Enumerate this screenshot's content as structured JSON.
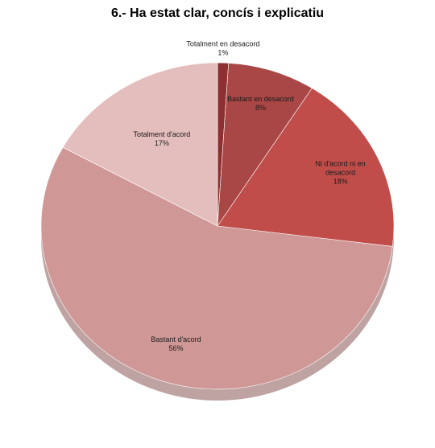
{
  "chart_data": {
    "type": "pie",
    "title": "6.- Ha estat clar, concís i explicatiu",
    "slices": [
      {
        "label": "Totalment en desacord",
        "value": 1,
        "value_label": "1%",
        "color": "#8f3030"
      },
      {
        "label": "Bastant en desacord",
        "value": 8,
        "value_label": "8%",
        "color": "#a84745"
      },
      {
        "label": "Ni d'acord ni en desacord",
        "value": 18,
        "value_label": "18%",
        "color": "#c04d4a"
      },
      {
        "label": "Bastant d'acord",
        "value": 56,
        "value_label": "56%",
        "color": "#cf9896"
      },
      {
        "label": "Totalment d'acord",
        "value": 17,
        "value_label": "17%",
        "color": "#e3bebd"
      }
    ],
    "start": "12 o'clock",
    "direction": "clockwise",
    "legend": "none"
  }
}
